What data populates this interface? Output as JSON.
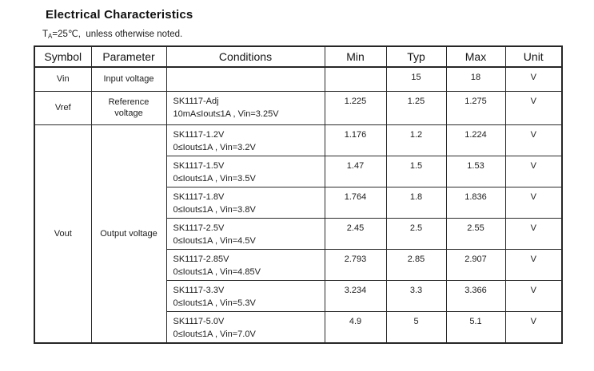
{
  "title": "Electrical Characteristics",
  "subtitle": {
    "prefix": "T",
    "subscript": "A",
    "suffix": "=25℃,  unless otherwise noted."
  },
  "colors": {
    "background": "#ffffff",
    "text": "#1c1c1c",
    "border": "#262626"
  },
  "table": {
    "headers": {
      "symbol": "Symbol",
      "parameter": "Parameter",
      "conditions": "Conditions",
      "min": "Min",
      "typ": "Typ",
      "max": "Max",
      "unit": "Unit"
    },
    "vin": {
      "symbol": "Vin",
      "parameter": "Input voltage",
      "cond1": "",
      "cond2": "",
      "min": "",
      "typ": "15",
      "max": "18",
      "unit": "V"
    },
    "vref": {
      "symbol": "Vref",
      "parameter": "Reference voltage",
      "cond1": "SK1117-Adj",
      "cond2": "10mA≤Iout≤1A , Vin=3.25V",
      "min": "1.225",
      "typ": "1.25",
      "max": "1.275",
      "unit": "V"
    },
    "vout": {
      "symbol": "Vout",
      "parameter": "Output voltage",
      "rows": [
        {
          "cond1": "SK1117-1.2V",
          "cond2": "0≤Iout≤1A , Vin=3.2V",
          "min": "1.176",
          "typ": "1.2",
          "max": "1.224",
          "unit": "V"
        },
        {
          "cond1": "SK1117-1.5V",
          "cond2": "0≤Iout≤1A , Vin=3.5V",
          "min": "1.47",
          "typ": "1.5",
          "max": "1.53",
          "unit": "V"
        },
        {
          "cond1": "SK1117-1.8V",
          "cond2": "0≤Iout≤1A , Vin=3.8V",
          "min": "1.764",
          "typ": "1.8",
          "max": "1.836",
          "unit": "V"
        },
        {
          "cond1": "SK1117-2.5V",
          "cond2": "0≤Iout≤1A , Vin=4.5V",
          "min": "2.45",
          "typ": "2.5",
          "max": "2.55",
          "unit": "V"
        },
        {
          "cond1": "SK1117-2.85V",
          "cond2": "0≤Iout≤1A , Vin=4.85V",
          "min": "2.793",
          "typ": "2.85",
          "max": "2.907",
          "unit": "V"
        },
        {
          "cond1": "SK1117-3.3V",
          "cond2": "0≤Iout≤1A , Vin=5.3V",
          "min": "3.234",
          "typ": "3.3",
          "max": "3.366",
          "unit": "V"
        },
        {
          "cond1": "SK1117-5.0V",
          "cond2": "0≤Iout≤1A , Vin=7.0V",
          "min": "4.9",
          "typ": "5",
          "max": "5.1",
          "unit": "V"
        }
      ]
    }
  }
}
